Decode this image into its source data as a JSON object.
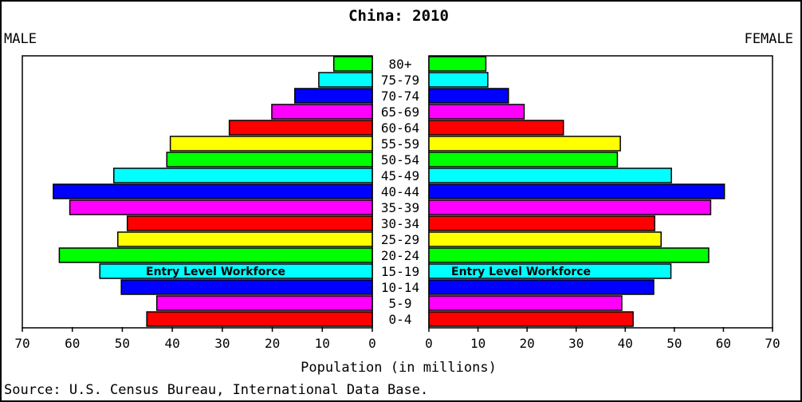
{
  "chart_data": {
    "type": "bar",
    "title": "China: 2010",
    "left_label": "MALE",
    "right_label": "FEMALE",
    "xlabel": "Population (in millions)",
    "source": "Source: U.S. Census Bureau, International Data Base.",
    "xlim": [
      0,
      70
    ],
    "xticks": [
      70,
      60,
      50,
      40,
      30,
      20,
      10,
      0
    ],
    "categories": [
      "80+",
      "75-79",
      "70-74",
      "65-69",
      "60-64",
      "55-59",
      "50-54",
      "45-49",
      "40-44",
      "35-39",
      "30-34",
      "25-29",
      "20-24",
      "15-19",
      "10-14",
      "5-9",
      "0-4"
    ],
    "colors": [
      "#00ff00",
      "#00ffff",
      "#0000ff",
      "#ff00ff",
      "#ff0000",
      "#ffff00",
      "#00ff00",
      "#00ffff",
      "#0000ff",
      "#ff00ff",
      "#ff0000",
      "#ffff00",
      "#00ff00",
      "#00ffff",
      "#0000ff",
      "#ff00ff",
      "#ff0000"
    ],
    "series": [
      {
        "name": "MALE",
        "values": [
          7.7,
          10.7,
          15.5,
          20.1,
          28.6,
          40.4,
          41.1,
          51.7,
          63.8,
          60.5,
          49.0,
          50.9,
          62.6,
          54.5,
          50.2,
          43.1,
          45.1
        ]
      },
      {
        "name": "FEMALE",
        "values": [
          11.6,
          12.0,
          16.2,
          19.4,
          27.4,
          39.0,
          38.4,
          49.4,
          60.2,
          57.4,
          46.0,
          47.3,
          57.0,
          49.3,
          45.8,
          39.3,
          41.6
        ]
      }
    ],
    "annotations": [
      {
        "text": "Entry Level Workforce",
        "side": "MALE",
        "category": "15-19"
      },
      {
        "text": "Entry Level Workforce",
        "side": "FEMALE",
        "category": "15-19"
      }
    ]
  }
}
